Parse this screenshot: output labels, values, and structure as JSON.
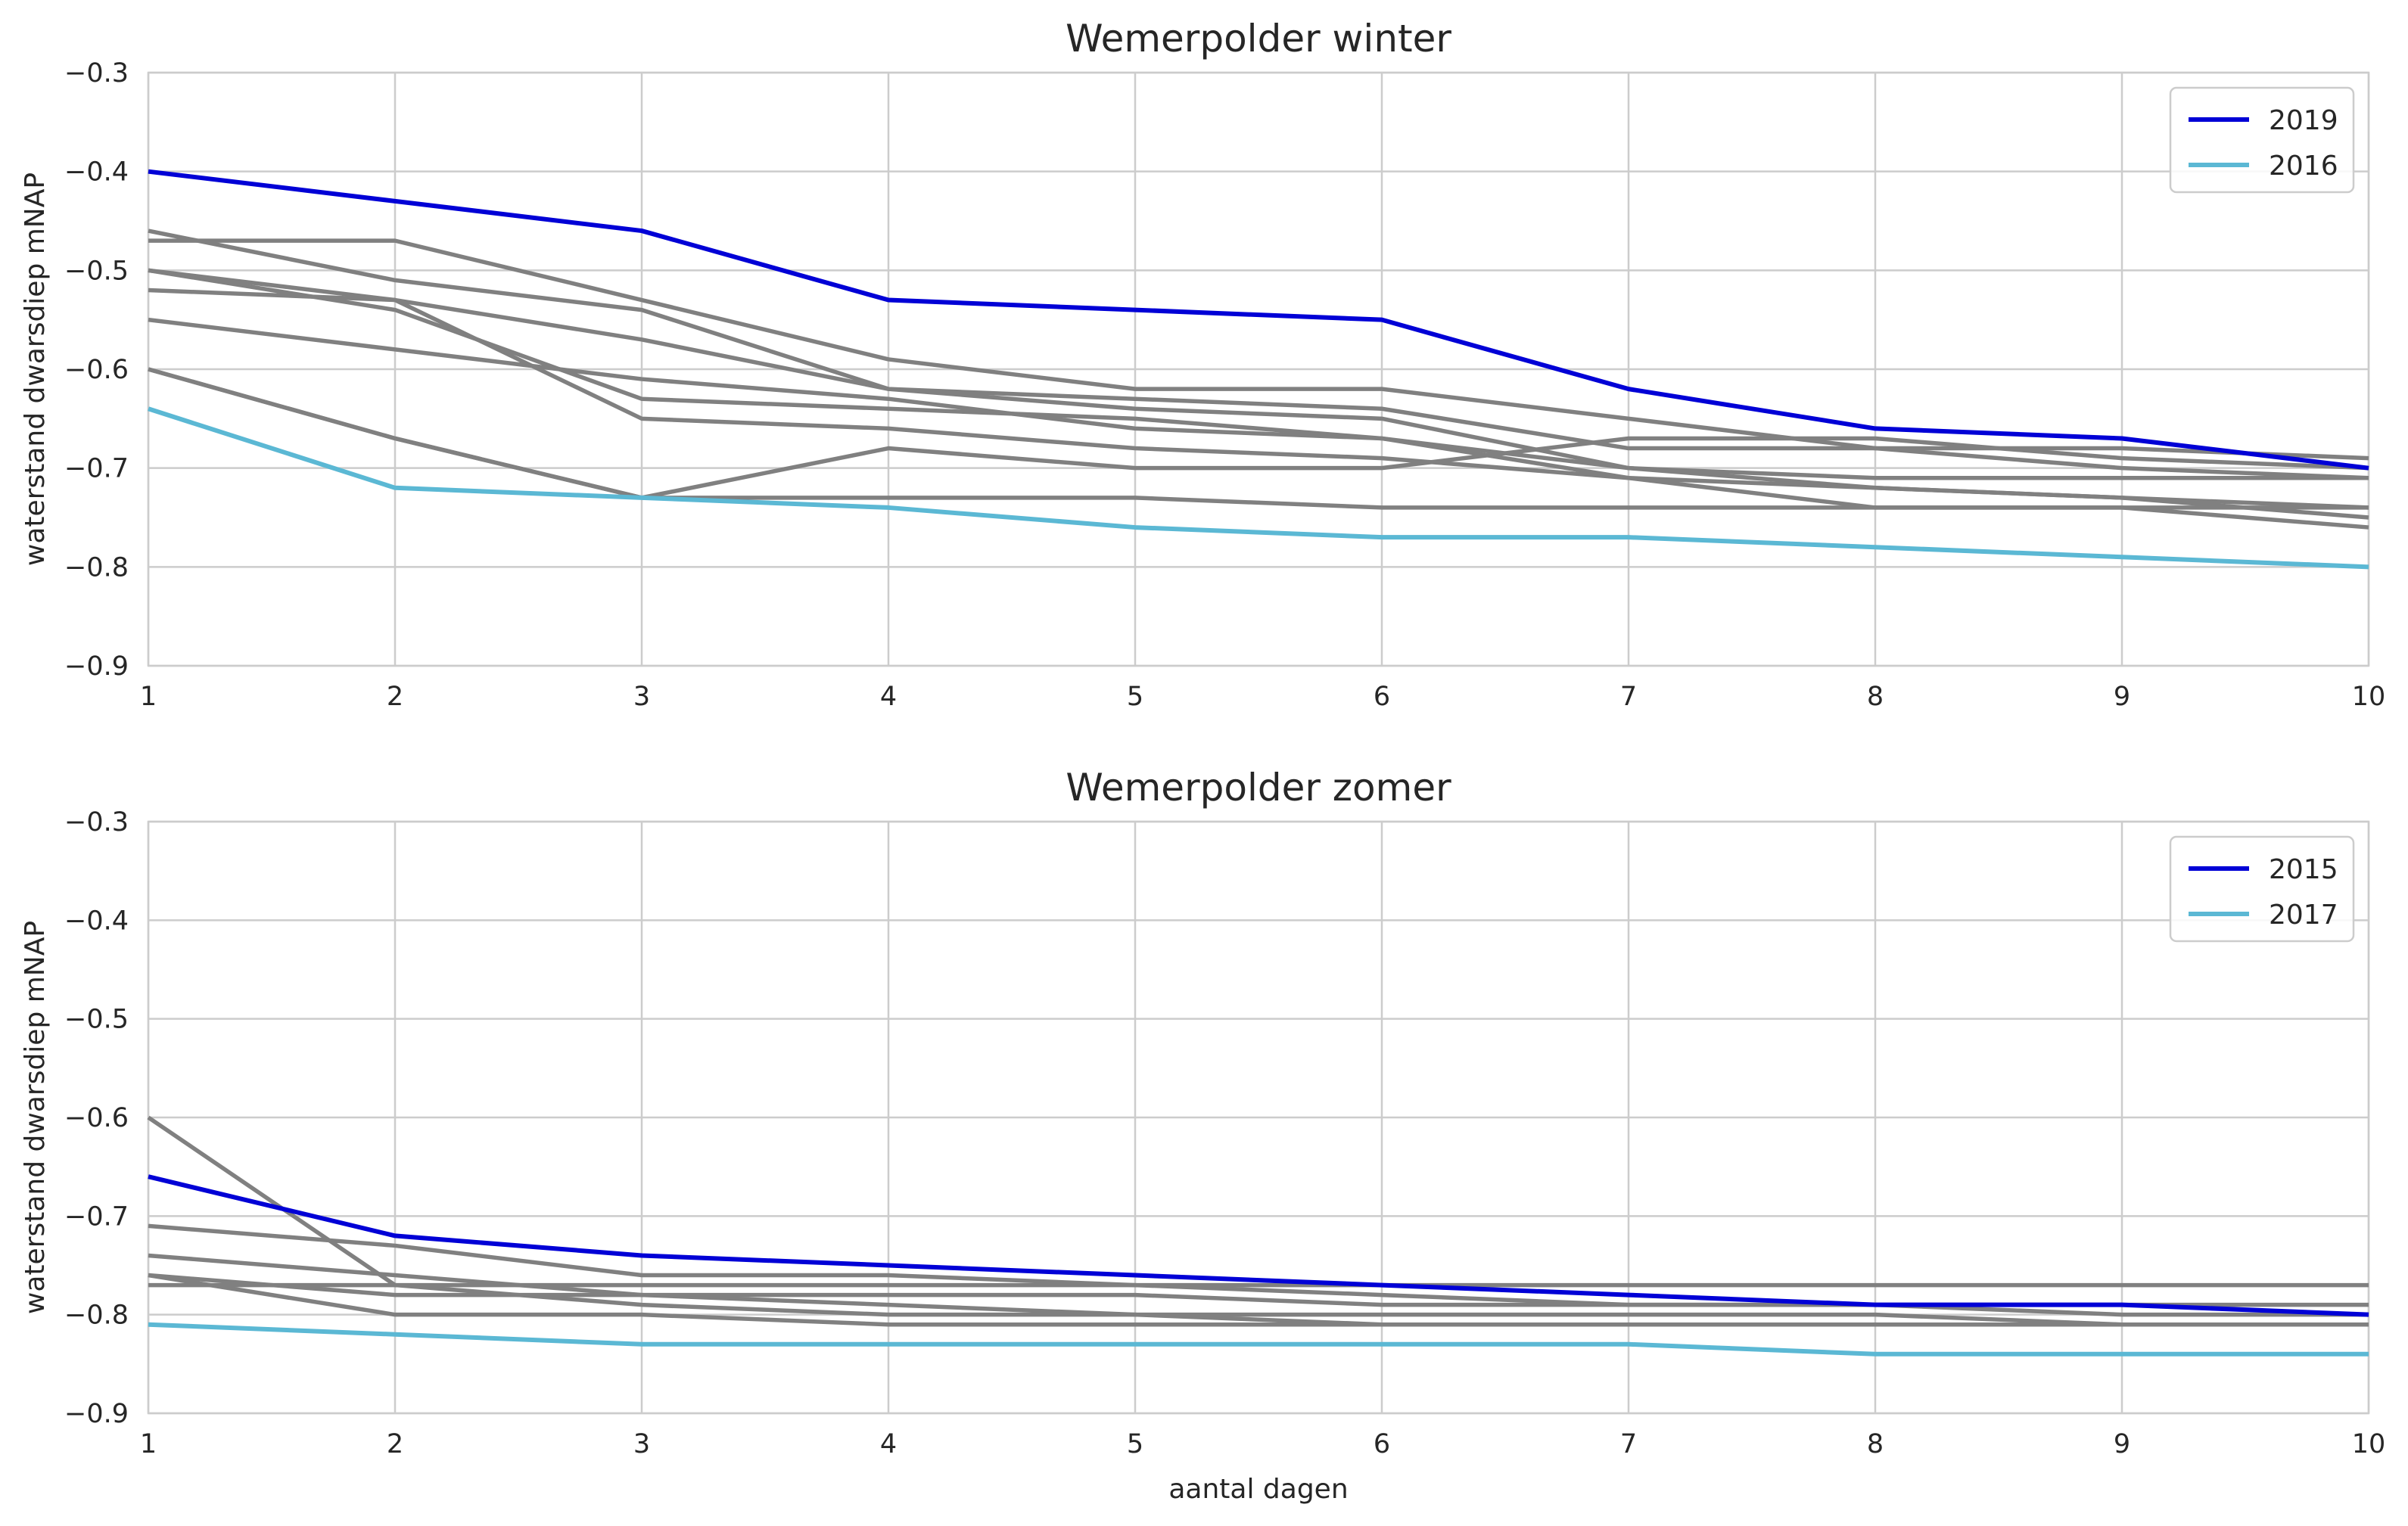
{
  "chart_data": [
    {
      "type": "line",
      "title": "Wemerpolder winter",
      "xlabel": "",
      "ylabel": "waterstand dwarsdiep mNAP",
      "xlim": [
        1,
        10
      ],
      "ylim": [
        -0.9,
        -0.3
      ],
      "x": [
        1,
        2,
        3,
        4,
        5,
        6,
        7,
        8,
        9,
        10
      ],
      "xticks": [
        "1",
        "2",
        "3",
        "4",
        "5",
        "6",
        "7",
        "8",
        "9",
        "10"
      ],
      "yticks": [
        "-0.3",
        "-0.4",
        "-0.5",
        "-0.6",
        "-0.7",
        "-0.8",
        "-0.9"
      ],
      "grid": true,
      "legend_position": "top-right",
      "background_color": "#808080",
      "background_series": [
        [
          -0.47,
          -0.47,
          -0.53,
          -0.59,
          -0.62,
          -0.62,
          -0.65,
          -0.68,
          -0.7,
          -0.71
        ],
        [
          -0.46,
          -0.51,
          -0.54,
          -0.62,
          -0.63,
          -0.64,
          -0.68,
          -0.68,
          -0.68,
          -0.69
        ],
        [
          -0.5,
          -0.53,
          -0.57,
          -0.62,
          -0.64,
          -0.65,
          -0.7,
          -0.71,
          -0.71,
          -0.71
        ],
        [
          -0.5,
          -0.54,
          -0.63,
          -0.64,
          -0.65,
          -0.67,
          -0.7,
          -0.72,
          -0.73,
          -0.74
        ],
        [
          -0.52,
          -0.53,
          -0.65,
          -0.66,
          -0.68,
          -0.69,
          -0.71,
          -0.72,
          -0.73,
          -0.75
        ],
        [
          -0.55,
          -0.58,
          -0.61,
          -0.63,
          -0.66,
          -0.67,
          -0.71,
          -0.74,
          -0.74,
          -0.74
        ],
        [
          -0.6,
          -0.67,
          -0.73,
          -0.68,
          -0.7,
          -0.7,
          -0.67,
          -0.67,
          -0.69,
          -0.7
        ],
        [
          -0.6,
          -0.67,
          -0.73,
          -0.73,
          -0.73,
          -0.74,
          -0.74,
          -0.74,
          -0.74,
          -0.76
        ]
      ],
      "series": [
        {
          "name": "2019",
          "color": "#0000d6",
          "values": [
            -0.4,
            -0.43,
            -0.46,
            -0.53,
            -0.54,
            -0.55,
            -0.62,
            -0.66,
            -0.67,
            -0.7
          ]
        },
        {
          "name": "2016",
          "color": "#5bb8d4",
          "values": [
            -0.64,
            -0.72,
            -0.73,
            -0.74,
            -0.76,
            -0.77,
            -0.77,
            -0.78,
            -0.79,
            -0.8
          ]
        }
      ]
    },
    {
      "type": "line",
      "title": "Wemerpolder zomer",
      "xlabel": "aantal dagen",
      "ylabel": "waterstand dwarsdiep mNAP",
      "xlim": [
        1,
        10
      ],
      "ylim": [
        -0.9,
        -0.3
      ],
      "x": [
        1,
        2,
        3,
        4,
        5,
        6,
        7,
        8,
        9,
        10
      ],
      "xticks": [
        "1",
        "2",
        "3",
        "4",
        "5",
        "6",
        "7",
        "8",
        "9",
        "10"
      ],
      "yticks": [
        "-0.3",
        "-0.4",
        "-0.5",
        "-0.6",
        "-0.7",
        "-0.8",
        "-0.9"
      ],
      "grid": true,
      "legend_position": "top-right",
      "background_color": "#808080",
      "background_series": [
        [
          -0.6,
          -0.77,
          -0.77,
          -0.77,
          -0.77,
          -0.77,
          -0.77,
          -0.77,
          -0.77,
          -0.77
        ],
        [
          -0.71,
          -0.73,
          -0.76,
          -0.76,
          -0.77,
          -0.78,
          -0.79,
          -0.79,
          -0.79,
          -0.79
        ],
        [
          -0.74,
          -0.76,
          -0.78,
          -0.78,
          -0.78,
          -0.79,
          -0.79,
          -0.79,
          -0.8,
          -0.8
        ],
        [
          -0.76,
          -0.78,
          -0.78,
          -0.79,
          -0.8,
          -0.8,
          -0.8,
          -0.8,
          -0.81,
          -0.81
        ],
        [
          -0.76,
          -0.8,
          -0.8,
          -0.81,
          -0.81,
          -0.81,
          -0.81,
          -0.81,
          -0.81,
          -0.81
        ],
        [
          -0.77,
          -0.77,
          -0.79,
          -0.8,
          -0.8,
          -0.81,
          -0.81,
          -0.81,
          -0.81,
          -0.81
        ]
      ],
      "series": [
        {
          "name": "2015",
          "color": "#0000d6",
          "values": [
            -0.66,
            -0.72,
            -0.74,
            -0.75,
            -0.76,
            -0.77,
            -0.78,
            -0.79,
            -0.79,
            -0.8
          ]
        },
        {
          "name": "2017",
          "color": "#5bb8d4",
          "values": [
            -0.81,
            -0.82,
            -0.83,
            -0.83,
            -0.83,
            -0.83,
            -0.83,
            -0.84,
            -0.84,
            -0.84
          ]
        }
      ]
    }
  ]
}
